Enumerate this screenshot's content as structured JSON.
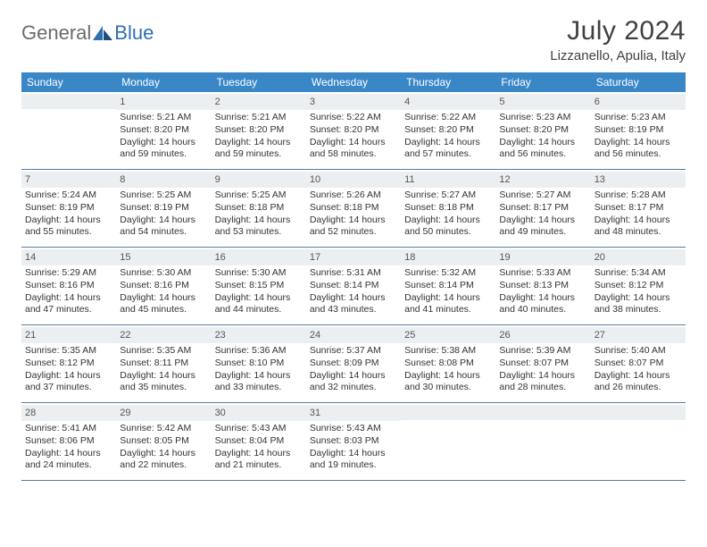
{
  "logo": {
    "part1": "General",
    "part2": "Blue"
  },
  "title": "July 2024",
  "location": "Lizzanello, Apulia, Italy",
  "colors": {
    "header_bg": "#3a87c8",
    "header_text": "#ffffff",
    "daynum_bg": "#eceff1",
    "row_border": "#5a7a9a",
    "logo_gray": "#6b6b6b",
    "logo_blue": "#2f6fb0"
  },
  "weekdays": [
    "Sunday",
    "Monday",
    "Tuesday",
    "Wednesday",
    "Thursday",
    "Friday",
    "Saturday"
  ],
  "weeks": [
    [
      {
        "num": "",
        "sunrise": "",
        "sunset": "",
        "daylight1": "",
        "daylight2": ""
      },
      {
        "num": "1",
        "sunrise": "Sunrise: 5:21 AM",
        "sunset": "Sunset: 8:20 PM",
        "daylight1": "Daylight: 14 hours",
        "daylight2": "and 59 minutes."
      },
      {
        "num": "2",
        "sunrise": "Sunrise: 5:21 AM",
        "sunset": "Sunset: 8:20 PM",
        "daylight1": "Daylight: 14 hours",
        "daylight2": "and 59 minutes."
      },
      {
        "num": "3",
        "sunrise": "Sunrise: 5:22 AM",
        "sunset": "Sunset: 8:20 PM",
        "daylight1": "Daylight: 14 hours",
        "daylight2": "and 58 minutes."
      },
      {
        "num": "4",
        "sunrise": "Sunrise: 5:22 AM",
        "sunset": "Sunset: 8:20 PM",
        "daylight1": "Daylight: 14 hours",
        "daylight2": "and 57 minutes."
      },
      {
        "num": "5",
        "sunrise": "Sunrise: 5:23 AM",
        "sunset": "Sunset: 8:20 PM",
        "daylight1": "Daylight: 14 hours",
        "daylight2": "and 56 minutes."
      },
      {
        "num": "6",
        "sunrise": "Sunrise: 5:23 AM",
        "sunset": "Sunset: 8:19 PM",
        "daylight1": "Daylight: 14 hours",
        "daylight2": "and 56 minutes."
      }
    ],
    [
      {
        "num": "7",
        "sunrise": "Sunrise: 5:24 AM",
        "sunset": "Sunset: 8:19 PM",
        "daylight1": "Daylight: 14 hours",
        "daylight2": "and 55 minutes."
      },
      {
        "num": "8",
        "sunrise": "Sunrise: 5:25 AM",
        "sunset": "Sunset: 8:19 PM",
        "daylight1": "Daylight: 14 hours",
        "daylight2": "and 54 minutes."
      },
      {
        "num": "9",
        "sunrise": "Sunrise: 5:25 AM",
        "sunset": "Sunset: 8:18 PM",
        "daylight1": "Daylight: 14 hours",
        "daylight2": "and 53 minutes."
      },
      {
        "num": "10",
        "sunrise": "Sunrise: 5:26 AM",
        "sunset": "Sunset: 8:18 PM",
        "daylight1": "Daylight: 14 hours",
        "daylight2": "and 52 minutes."
      },
      {
        "num": "11",
        "sunrise": "Sunrise: 5:27 AM",
        "sunset": "Sunset: 8:18 PM",
        "daylight1": "Daylight: 14 hours",
        "daylight2": "and 50 minutes."
      },
      {
        "num": "12",
        "sunrise": "Sunrise: 5:27 AM",
        "sunset": "Sunset: 8:17 PM",
        "daylight1": "Daylight: 14 hours",
        "daylight2": "and 49 minutes."
      },
      {
        "num": "13",
        "sunrise": "Sunrise: 5:28 AM",
        "sunset": "Sunset: 8:17 PM",
        "daylight1": "Daylight: 14 hours",
        "daylight2": "and 48 minutes."
      }
    ],
    [
      {
        "num": "14",
        "sunrise": "Sunrise: 5:29 AM",
        "sunset": "Sunset: 8:16 PM",
        "daylight1": "Daylight: 14 hours",
        "daylight2": "and 47 minutes."
      },
      {
        "num": "15",
        "sunrise": "Sunrise: 5:30 AM",
        "sunset": "Sunset: 8:16 PM",
        "daylight1": "Daylight: 14 hours",
        "daylight2": "and 45 minutes."
      },
      {
        "num": "16",
        "sunrise": "Sunrise: 5:30 AM",
        "sunset": "Sunset: 8:15 PM",
        "daylight1": "Daylight: 14 hours",
        "daylight2": "and 44 minutes."
      },
      {
        "num": "17",
        "sunrise": "Sunrise: 5:31 AM",
        "sunset": "Sunset: 8:14 PM",
        "daylight1": "Daylight: 14 hours",
        "daylight2": "and 43 minutes."
      },
      {
        "num": "18",
        "sunrise": "Sunrise: 5:32 AM",
        "sunset": "Sunset: 8:14 PM",
        "daylight1": "Daylight: 14 hours",
        "daylight2": "and 41 minutes."
      },
      {
        "num": "19",
        "sunrise": "Sunrise: 5:33 AM",
        "sunset": "Sunset: 8:13 PM",
        "daylight1": "Daylight: 14 hours",
        "daylight2": "and 40 minutes."
      },
      {
        "num": "20",
        "sunrise": "Sunrise: 5:34 AM",
        "sunset": "Sunset: 8:12 PM",
        "daylight1": "Daylight: 14 hours",
        "daylight2": "and 38 minutes."
      }
    ],
    [
      {
        "num": "21",
        "sunrise": "Sunrise: 5:35 AM",
        "sunset": "Sunset: 8:12 PM",
        "daylight1": "Daylight: 14 hours",
        "daylight2": "and 37 minutes."
      },
      {
        "num": "22",
        "sunrise": "Sunrise: 5:35 AM",
        "sunset": "Sunset: 8:11 PM",
        "daylight1": "Daylight: 14 hours",
        "daylight2": "and 35 minutes."
      },
      {
        "num": "23",
        "sunrise": "Sunrise: 5:36 AM",
        "sunset": "Sunset: 8:10 PM",
        "daylight1": "Daylight: 14 hours",
        "daylight2": "and 33 minutes."
      },
      {
        "num": "24",
        "sunrise": "Sunrise: 5:37 AM",
        "sunset": "Sunset: 8:09 PM",
        "daylight1": "Daylight: 14 hours",
        "daylight2": "and 32 minutes."
      },
      {
        "num": "25",
        "sunrise": "Sunrise: 5:38 AM",
        "sunset": "Sunset: 8:08 PM",
        "daylight1": "Daylight: 14 hours",
        "daylight2": "and 30 minutes."
      },
      {
        "num": "26",
        "sunrise": "Sunrise: 5:39 AM",
        "sunset": "Sunset: 8:07 PM",
        "daylight1": "Daylight: 14 hours",
        "daylight2": "and 28 minutes."
      },
      {
        "num": "27",
        "sunrise": "Sunrise: 5:40 AM",
        "sunset": "Sunset: 8:07 PM",
        "daylight1": "Daylight: 14 hours",
        "daylight2": "and 26 minutes."
      }
    ],
    [
      {
        "num": "28",
        "sunrise": "Sunrise: 5:41 AM",
        "sunset": "Sunset: 8:06 PM",
        "daylight1": "Daylight: 14 hours",
        "daylight2": "and 24 minutes."
      },
      {
        "num": "29",
        "sunrise": "Sunrise: 5:42 AM",
        "sunset": "Sunset: 8:05 PM",
        "daylight1": "Daylight: 14 hours",
        "daylight2": "and 22 minutes."
      },
      {
        "num": "30",
        "sunrise": "Sunrise: 5:43 AM",
        "sunset": "Sunset: 8:04 PM",
        "daylight1": "Daylight: 14 hours",
        "daylight2": "and 21 minutes."
      },
      {
        "num": "31",
        "sunrise": "Sunrise: 5:43 AM",
        "sunset": "Sunset: 8:03 PM",
        "daylight1": "Daylight: 14 hours",
        "daylight2": "and 19 minutes."
      },
      {
        "num": "",
        "sunrise": "",
        "sunset": "",
        "daylight1": "",
        "daylight2": ""
      },
      {
        "num": "",
        "sunrise": "",
        "sunset": "",
        "daylight1": "",
        "daylight2": ""
      },
      {
        "num": "",
        "sunrise": "",
        "sunset": "",
        "daylight1": "",
        "daylight2": ""
      }
    ]
  ]
}
